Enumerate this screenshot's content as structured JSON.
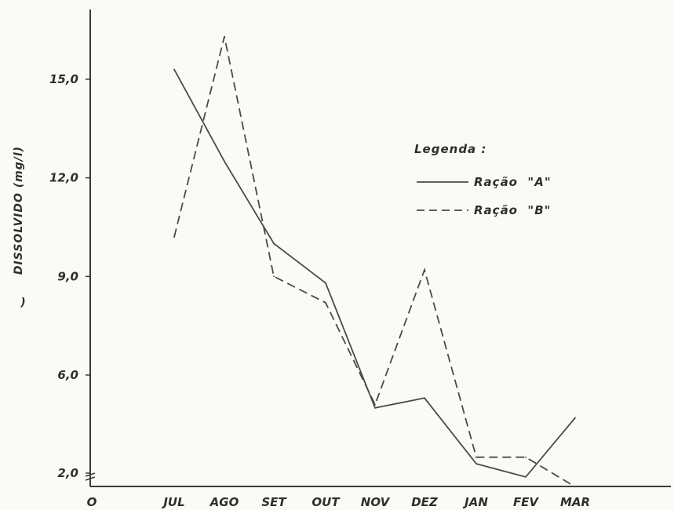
{
  "chart_data": {
    "type": "line",
    "categories": [
      "JUL",
      "AGO",
      "SET",
      "OUT",
      "NOV",
      "DEZ",
      "JAN",
      "FEV",
      "MAR"
    ],
    "x_origin_label": "O",
    "series": [
      {
        "name": "Ração  \"A\"",
        "values": [
          15.3,
          12.5,
          10.0,
          8.8,
          5.0,
          5.3,
          3.3,
          2.9,
          4.7
        ],
        "style": "solid",
        "color": "#4a4a4a"
      },
      {
        "name": "Ração  \"B\"",
        "values": [
          10.2,
          16.3,
          9.0,
          8.2,
          5.1,
          9.2,
          3.5,
          3.5,
          2.6
        ],
        "style": "dashed",
        "color": "#4a4a4a"
      }
    ],
    "ylabel": "DISSOLVIDO (mg/l)",
    "ylabel_prefix_fragment": ")",
    "yticks": [
      "2,0",
      "6,0",
      "9,0",
      "12,0",
      "15,0"
    ],
    "ytick_values": [
      2,
      6,
      9,
      12,
      15
    ],
    "ylim": [
      2,
      16.8
    ],
    "y_axis_break": true,
    "legend": {
      "title": "Legenda :",
      "position": "top-right"
    },
    "grid": false
  }
}
